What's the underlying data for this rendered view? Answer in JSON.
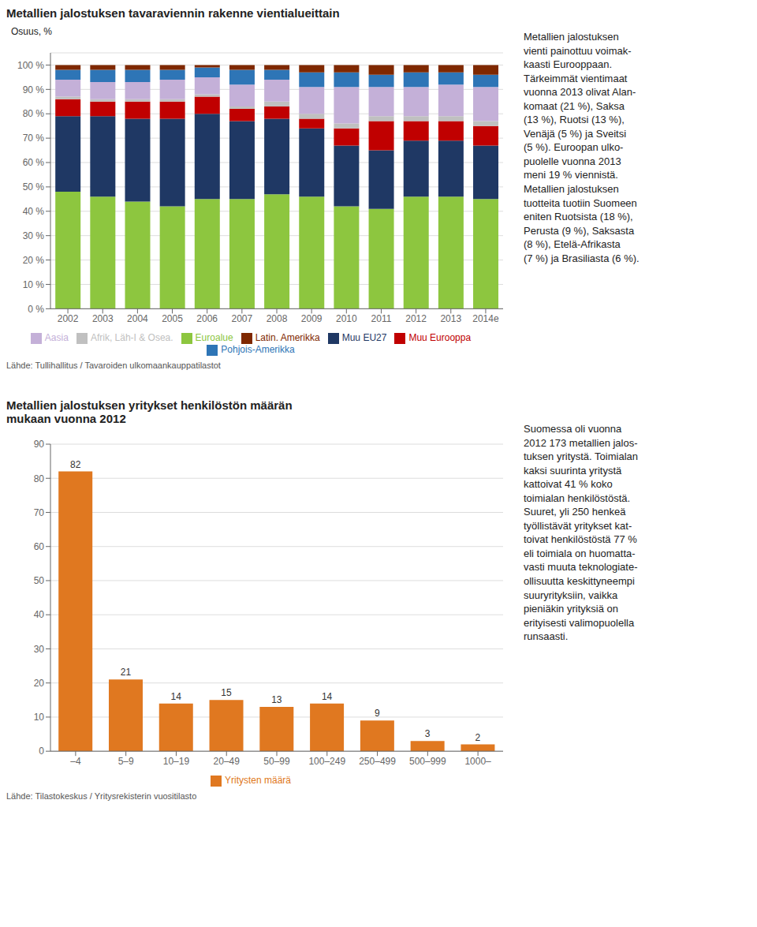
{
  "chart_data": [
    {
      "type": "bar",
      "title": "Metallien jalostuksen tavaraviennin rakenne vientialueittain",
      "ylabel": "Osuus, %",
      "annotations": [
        "Lähde: Tullihallitus / Tavaroiden ulkomaankauppatilastot",
        "Metallien jalostuksen\nvienti painottuu voimak-\nkaasti Eurooppaan.\nTärkeimmät vientimaat\nvuonna 2013 olivat Alan-\nkomaat (21 %), Saksa\n(13 %), Ruotsi (13 %),\nVenäjä (5 %) ja Sveitsi\n(5 %). Euroopan ulko-\npuolelle vuonna 2013\nmeni 19 % viennistä.\nMetallien jalostuksen\ntuotteita tuotiin Suomeen\neniten Ruotsista (18 %),\nPerusta (9 %), Saksasta\n(8 %), Etelä-Afrikasta\n(7 %) ja Brasiliasta (6 %)."
      ],
      "categories": [
        "2002",
        "2003",
        "2004",
        "2005",
        "2006",
        "2007",
        "2008",
        "2009",
        "2010",
        "2011",
        "2012",
        "2013",
        "2014e"
      ],
      "series": [
        {
          "name": "Euroalue",
          "color": "#8dc63f",
          "values": [
            48,
            46,
            44,
            42,
            45,
            45,
            47,
            46,
            42,
            41,
            46,
            46,
            45
          ]
        },
        {
          "name": "Muu EU27",
          "color": "#1f3864",
          "values": [
            31,
            33,
            34,
            36,
            35,
            32,
            31,
            28,
            25,
            24,
            23,
            23,
            22
          ]
        },
        {
          "name": "Muu Eurooppa",
          "color": "#c00000",
          "values": [
            7,
            6,
            7,
            7,
            7,
            5,
            5,
            4,
            7,
            12,
            8,
            8,
            8
          ]
        },
        {
          "name": "Afrik, Läh-I & Osea.",
          "color": "#c0c0c0",
          "values": [
            1,
            1,
            1,
            1,
            1,
            1,
            2,
            2,
            2,
            2,
            2,
            2,
            2
          ]
        },
        {
          "name": "Aasia",
          "color": "#c4b0d8",
          "values": [
            7,
            7,
            7,
            8,
            7,
            9,
            9,
            11,
            15,
            12,
            12,
            13,
            14
          ]
        },
        {
          "name": "Pohjois-Amerikka",
          "color": "#2e75b6",
          "values": [
            4,
            5,
            5,
            4,
            4,
            6,
            4,
            6,
            6,
            5,
            6,
            5,
            5
          ]
        },
        {
          "name": "Latin. Amerikka",
          "color": "#7f2800",
          "values": [
            2,
            2,
            2,
            2,
            1,
            2,
            2,
            3,
            3,
            4,
            3,
            3,
            4
          ]
        }
      ],
      "stacked": true,
      "ylim": [
        0,
        105
      ],
      "yticks": [
        {
          "value": 0,
          "label": "0 %"
        },
        {
          "value": 10,
          "label": "10 %"
        },
        {
          "value": 20,
          "label": "20 %"
        },
        {
          "value": 30,
          "label": "30 %"
        },
        {
          "value": 40,
          "label": "40 %"
        },
        {
          "value": 50,
          "label": "50 %"
        },
        {
          "value": 60,
          "label": "60 %"
        },
        {
          "value": 70,
          "label": "70 %"
        },
        {
          "value": 80,
          "label": "80 %"
        },
        {
          "value": 90,
          "label": "90 %"
        },
        {
          "value": 100,
          "label": "100 %"
        }
      ],
      "grid": true,
      "legend": "bottom"
    },
    {
      "type": "bar",
      "title": "Metallien jalostuksen yritykset henkilöstön määrän\nmukaan vuonna 2012",
      "annotations": [
        "Lähde: Tilastokeskus / Yritysrekisterin vuositilasto",
        "Suomessa oli vuonna\n2012 173 metallien jalos-\ntuksen yritystä. Toimialan\nkaksi suurinta yritystä\nkattoivat 41 % koko\ntoimialan henkilöstöstä.\nSuuret, yli 250 henkeä\ntyöllistävät yritykset kat-\ntoivat henkilöstöstä 77 %\neli toimiala on huomatta-\nvasti muuta teknologiate-\nollisuutta keskittyneempi\nsuuryrityksiin, vaikka\npieniäkin yrityksiä on\nerityisesti valimopuolella\nrunsaasti."
      ],
      "categories": [
        "–4",
        "5–9",
        "10–19",
        "20–49",
        "50–99",
        "100–249",
        "250–499",
        "500–999",
        "1000–"
      ],
      "series": [
        {
          "name": "Yritysten määrä",
          "color": "#e07820",
          "values": [
            82,
            21,
            14,
            15,
            13,
            14,
            9,
            3,
            2
          ]
        }
      ],
      "ylim": [
        0,
        90
      ],
      "yticks": [
        0,
        10,
        20,
        30,
        40,
        50,
        60,
        70,
        80,
        90
      ],
      "grid": true,
      "data_labels": true,
      "legend": "bottom"
    }
  ]
}
